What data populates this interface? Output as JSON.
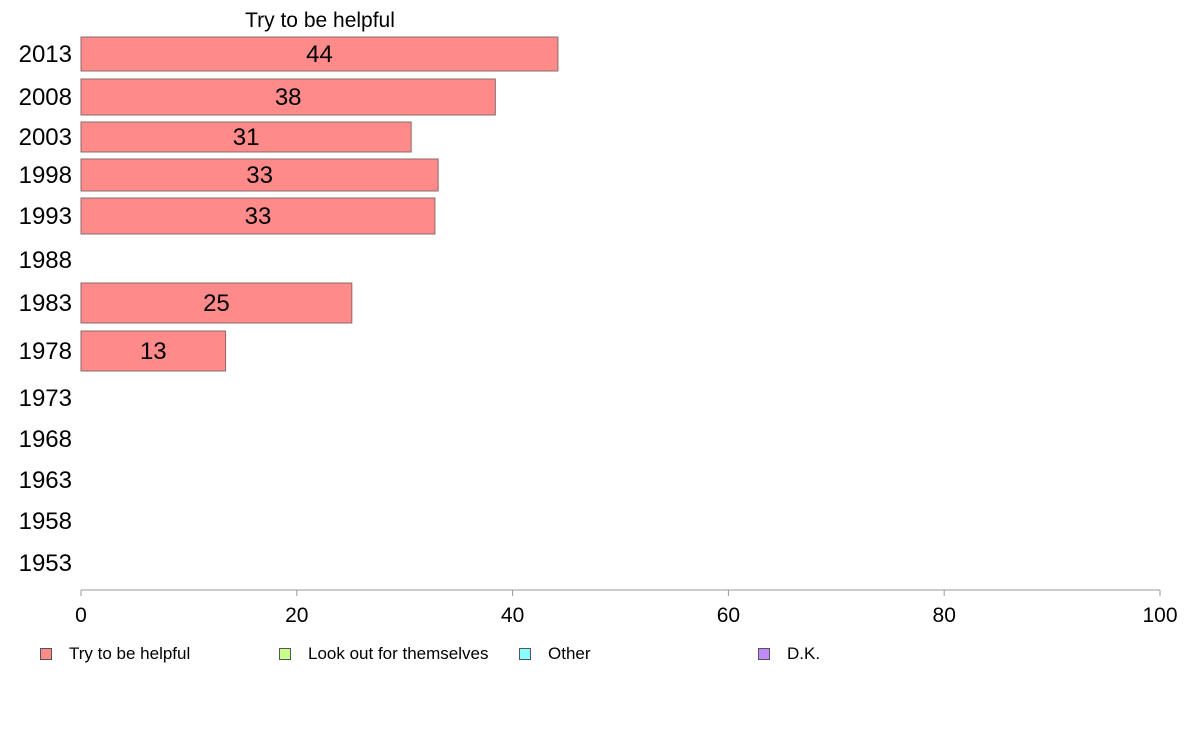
{
  "chart_data": {
    "type": "bar",
    "orientation": "horizontal",
    "title": "Try to be helpful",
    "categories": [
      "2013",
      "2008",
      "2003",
      "1998",
      "1993",
      "1988",
      "1983",
      "1978",
      "1973",
      "1968",
      "1963",
      "1958",
      "1953"
    ],
    "values": [
      44,
      38,
      31,
      33,
      33,
      null,
      25,
      13,
      null,
      null,
      null,
      null,
      null
    ],
    "bar_values": [
      44.2,
      38.4,
      30.6,
      33.1,
      32.8,
      null,
      25.1,
      13.4,
      null,
      null,
      null,
      null,
      null
    ],
    "data_labels": [
      "44",
      "38",
      "31",
      "33",
      "33",
      "",
      "25",
      "13",
      "",
      "",
      "",
      "",
      ""
    ],
    "xlim": [
      0,
      100
    ],
    "xticks": [
      "0",
      "20",
      "40",
      "60",
      "80",
      "100"
    ],
    "xlabel": "",
    "ylabel": "",
    "grid": false,
    "legend_position": "bottom",
    "legend": [
      {
        "label": "Try to be helpful",
        "color": "#ff8a8a"
      },
      {
        "label": "Look out for themselves",
        "color": "#c8ff8a"
      },
      {
        "label": "Other",
        "color": "#8affff"
      },
      {
        "label": "D.K.",
        "color": "#c08aff"
      }
    ]
  }
}
